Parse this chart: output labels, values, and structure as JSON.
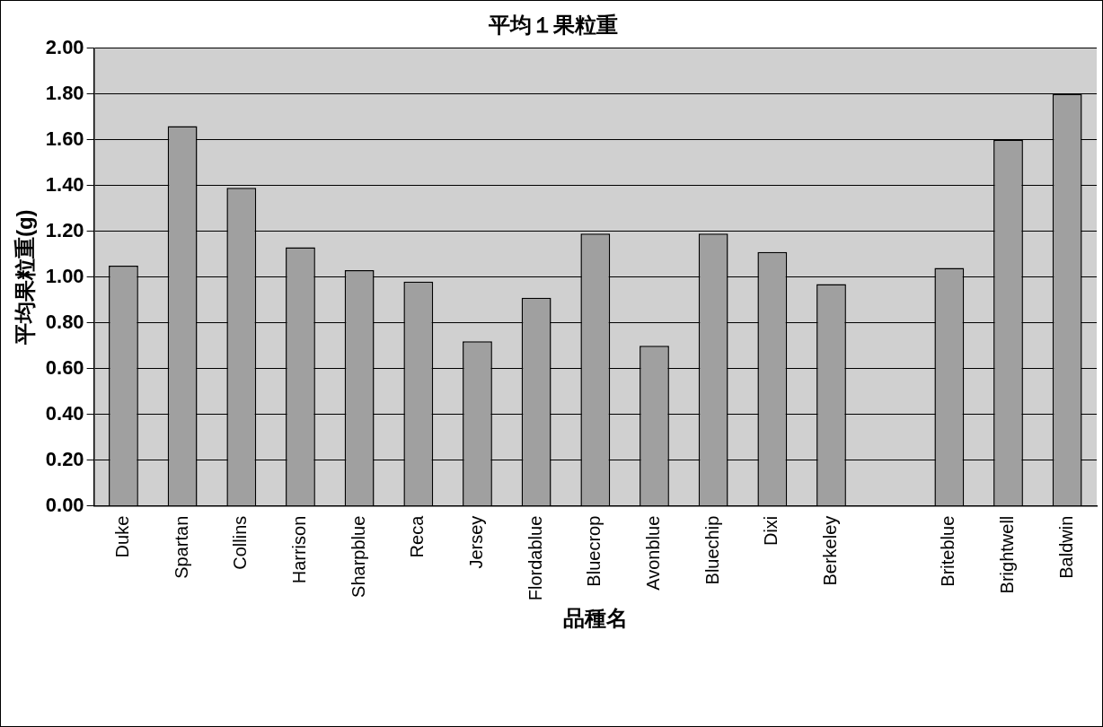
{
  "chart_data": {
    "type": "bar",
    "title": "平均１果粒重",
    "xlabel": "品種名",
    "ylabel": "平均果粒重(g)",
    "categories": [
      "Duke",
      "Spartan",
      "Collins",
      "Harrison",
      "Sharpblue",
      "Reca",
      "Jersey",
      "Flordablue",
      "Bluecrop",
      "Avonblue",
      "Bluechip",
      "Dixi",
      "Berkeley",
      null,
      "Briteblue",
      "Brightwell",
      "Baldwin"
    ],
    "values": [
      1.05,
      1.66,
      1.39,
      1.13,
      1.03,
      0.98,
      0.72,
      0.91,
      1.19,
      0.7,
      1.19,
      1.11,
      0.97,
      null,
      1.04,
      1.6,
      1.8
    ],
    "color": "#a0a0a0",
    "ylim": [
      0,
      2
    ],
    "yticks": [
      {
        "value": 0,
        "label": "0.00"
      },
      {
        "value": 0.2,
        "label": "0.20"
      },
      {
        "value": 0.4,
        "label": "0.40"
      },
      {
        "value": 0.6,
        "label": "0.60"
      },
      {
        "value": 0.8,
        "label": "0.80"
      },
      {
        "value": 1,
        "label": "1.00"
      },
      {
        "value": 1.2,
        "label": "1.20"
      },
      {
        "value": 1.4,
        "label": "1.40"
      },
      {
        "value": 1.6,
        "label": "1.60"
      },
      {
        "value": 1.8,
        "label": "1.80"
      },
      {
        "value": 2,
        "label": "2.00"
      }
    ],
    "grid": "y",
    "legend": false
  }
}
